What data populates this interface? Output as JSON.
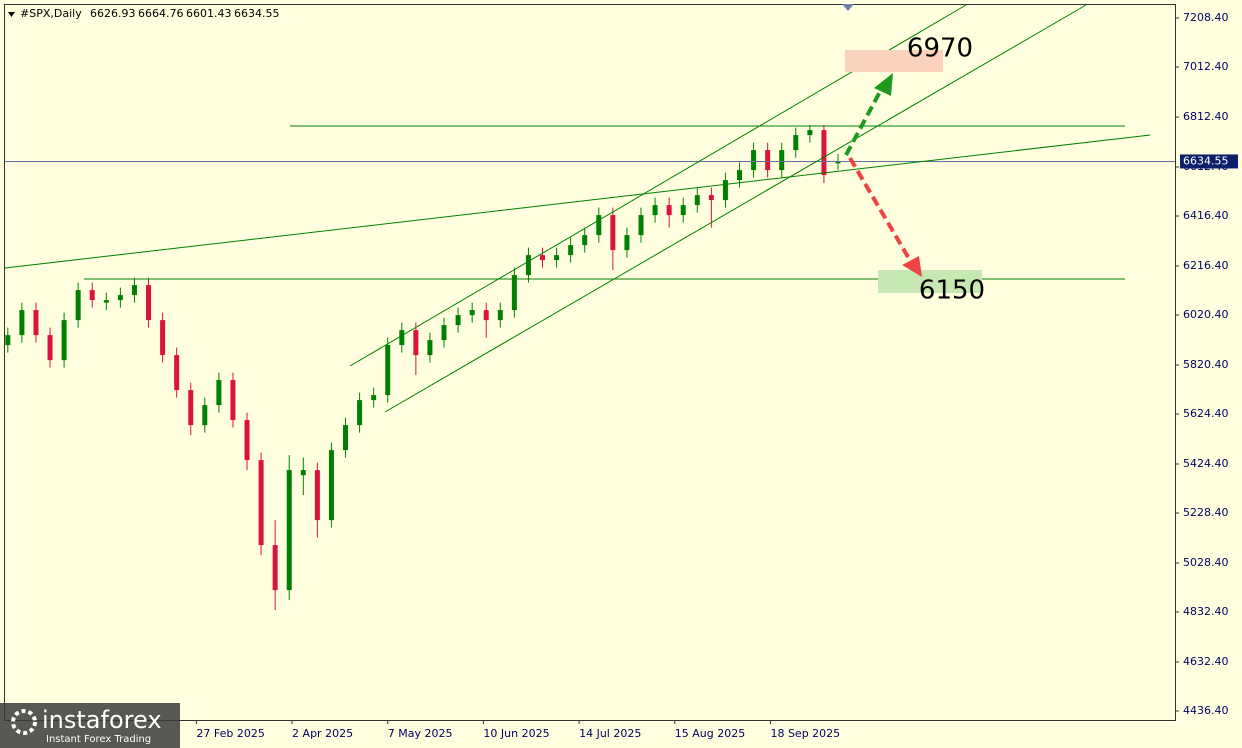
{
  "chart_data": {
    "type": "candlestick",
    "title": "#SPX,Daily",
    "open": [
      5900,
      5940,
      6040,
      5940,
      5840,
      6000,
      6120,
      6070,
      6080,
      6100,
      6140,
      6000,
      5860,
      5720,
      5580,
      5660,
      5760,
      5600,
      5440,
      5100,
      4920,
      5380,
      5400,
      5200,
      5480,
      5580,
      5680,
      5700,
      5900,
      5960,
      5860,
      5920,
      5980,
      6020,
      6040,
      6000,
      6040,
      6180,
      6260,
      6240,
      6260,
      6300,
      6340,
      6420,
      6280,
      6340,
      6420,
      6460,
      6420,
      6460,
      6500,
      6480,
      6560,
      6600,
      6680,
      6600,
      6680,
      6740,
      6760,
      6626.93
    ],
    "high": [
      5970,
      6070,
      6070,
      5970,
      6030,
      6150,
      6150,
      6110,
      6130,
      6170,
      6170,
      6030,
      5890,
      5750,
      5690,
      5790,
      5790,
      5630,
      5470,
      5200,
      5460,
      5450,
      5430,
      5510,
      5610,
      5710,
      5730,
      5930,
      5990,
      5990,
      5950,
      6010,
      6050,
      6070,
      6070,
      6070,
      6210,
      6290,
      6290,
      6290,
      6330,
      6370,
      6450,
      6450,
      6370,
      6450,
      6490,
      6490,
      6490,
      6530,
      6530,
      6590,
      6630,
      6710,
      6710,
      6710,
      6770,
      6780,
      6780,
      6664.76
    ],
    "low": [
      5870,
      5910,
      5910,
      5810,
      5810,
      5970,
      6050,
      6040,
      6050,
      6070,
      5970,
      5830,
      5690,
      5540,
      5550,
      5630,
      5570,
      5400,
      5060,
      4840,
      4880,
      5300,
      5130,
      5170,
      5450,
      5550,
      5650,
      5670,
      5870,
      5780,
      5830,
      5890,
      5950,
      5990,
      5930,
      5970,
      6010,
      6150,
      6210,
      6210,
      6230,
      6270,
      6310,
      6200,
      6250,
      6310,
      6390,
      6370,
      6390,
      6430,
      6370,
      6450,
      6530,
      6570,
      6570,
      6570,
      6650,
      6710,
      6548,
      6601.43
    ],
    "close": [
      5940,
      6040,
      5940,
      5840,
      6000,
      6120,
      6080,
      6080,
      6100,
      6140,
      6000,
      5860,
      5720,
      5580,
      5660,
      5760,
      5600,
      5440,
      5100,
      4920,
      5400,
      5400,
      5200,
      5480,
      5580,
      5680,
      5700,
      5900,
      5960,
      5860,
      5920,
      5980,
      6020,
      6040,
      6000,
      6040,
      6180,
      6260,
      6240,
      6260,
      6300,
      6340,
      6420,
      6280,
      6340,
      6420,
      6460,
      6420,
      6460,
      6500,
      6480,
      6560,
      6600,
      6680,
      6600,
      6680,
      6740,
      6760,
      6580,
      6634.55
    ],
    "up_color": "#008000",
    "down_color": "#dc143c",
    "xlim": [
      -0.2,
      82.95
    ],
    "xticks": [
      {
        "value": 13.4,
        "label": "27 Feb 2025"
      },
      {
        "value": 20.2,
        "label": "2 Apr 2025"
      },
      {
        "value": 27,
        "label": "7 May 2025"
      },
      {
        "value": 33.8,
        "label": "10 Jun 2025"
      },
      {
        "value": 40.6,
        "label": "14 Jul 2025"
      },
      {
        "value": 47.4,
        "label": "15 Aug 2025"
      },
      {
        "value": 54.2,
        "label": "18 Sep 2025"
      }
    ],
    "ylim": [
      4400.4,
      7260.4
    ],
    "yticks": [
      {
        "value": 7208.4,
        "label": "7208.40"
      },
      {
        "value": 7012.4,
        "label": "7012.40"
      },
      {
        "value": 6812.4,
        "label": "6812.40"
      },
      {
        "value": 6612.4,
        "label": "6612.40"
      },
      {
        "value": 6416.4,
        "label": "6416.40"
      },
      {
        "value": 6216.4,
        "label": "6216.40"
      },
      {
        "value": 6020.4,
        "label": "6020.40"
      },
      {
        "value": 5820.4,
        "label": "5820.40"
      },
      {
        "value": 5624.4,
        "label": "5624.40"
      },
      {
        "value": 5424.4,
        "label": "5424.40"
      },
      {
        "value": 5228.4,
        "label": "5228.40"
      },
      {
        "value": 5028.4,
        "label": "5028.40"
      },
      {
        "value": 4832.4,
        "label": "4832.40"
      },
      {
        "value": 4632.4,
        "label": "4632.40"
      },
      {
        "value": 4436.4,
        "label": "4436.40"
      }
    ],
    "annotations": [
      "6970",
      "6150"
    ],
    "watermark": {
      "name": "instaforex",
      "tagline": "Instant Forex Trading"
    }
  }
}
